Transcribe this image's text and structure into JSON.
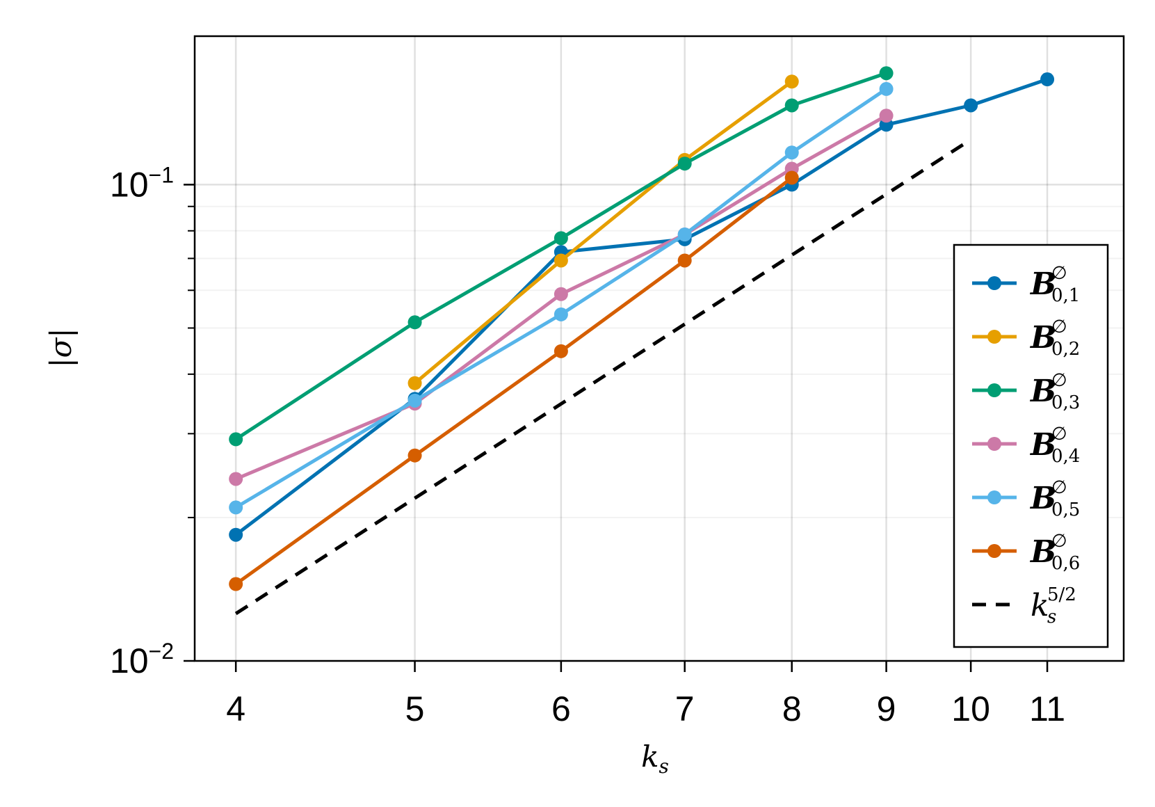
{
  "chart_data": {
    "type": "line",
    "title": "",
    "xlabel": "k",
    "xlabel_sub": "s",
    "ylabel": "|σ|",
    "x_scale": "log",
    "y_scale": "log",
    "xlim": [
      3.8,
      12.1
    ],
    "ylim": [
      0.01,
      0.205
    ],
    "x_ticks": [
      {
        "value": 4,
        "label": "4"
      },
      {
        "value": 5,
        "label": "5"
      },
      {
        "value": 6,
        "label": "6"
      },
      {
        "value": 7,
        "label": "7"
      },
      {
        "value": 8,
        "label": "8"
      },
      {
        "value": 9,
        "label": "9"
      },
      {
        "value": 10,
        "label": "10"
      },
      {
        "value": 11,
        "label": "11"
      }
    ],
    "y_ticks": [
      {
        "value": 0.01,
        "base": "10",
        "exp": "−2"
      },
      {
        "value": 0.1,
        "base": "10",
        "exp": "−1"
      }
    ],
    "y_minor_ticks": [
      0.02,
      0.03,
      0.04,
      0.05,
      0.06,
      0.07,
      0.08,
      0.09
    ],
    "grid": true,
    "legend_position": "bottom-right",
    "series": [
      {
        "name": "B",
        "sup": "∅",
        "sub": "0,1",
        "color": "#0072B2",
        "dash": false,
        "x": [
          4,
          5,
          6,
          7,
          8,
          9,
          10,
          11
        ],
        "y": [
          0.0184,
          0.0355,
          0.0722,
          0.0768,
          0.1,
          0.1336,
          0.1467,
          0.1664
        ]
      },
      {
        "name": "B",
        "sup": "∅",
        "sub": "0,2",
        "color": "#E69F00",
        "dash": false,
        "x": [
          5,
          6,
          7,
          8
        ],
        "y": [
          0.0383,
          0.0693,
          0.1127,
          0.1646
        ]
      },
      {
        "name": "B",
        "sup": "∅",
        "sub": "0,3",
        "color": "#009E73",
        "dash": false,
        "x": [
          4,
          5,
          6,
          7,
          8,
          9
        ],
        "y": [
          0.0292,
          0.0514,
          0.0772,
          0.1107,
          0.1467,
          0.1714
        ]
      },
      {
        "name": "B",
        "sup": "∅",
        "sub": "0,4",
        "color": "#CC79A7",
        "dash": false,
        "x": [
          4,
          5,
          6,
          7,
          8,
          9
        ],
        "y": [
          0.0241,
          0.0347,
          0.0589,
          0.0786,
          0.108,
          0.1396
        ]
      },
      {
        "name": "B",
        "sup": "∅",
        "sub": "0,5",
        "color": "#56B4E9",
        "dash": false,
        "x": [
          4,
          5,
          6,
          7,
          8,
          9
        ],
        "y": [
          0.021,
          0.0352,
          0.0534,
          0.0786,
          0.1168,
          0.1588
        ]
      },
      {
        "name": "B",
        "sup": "∅",
        "sub": "0,6",
        "color": "#D55E00",
        "dash": false,
        "x": [
          4,
          5,
          6,
          7,
          8
        ],
        "y": [
          0.0145,
          0.027,
          0.0447,
          0.0693,
          0.1034
        ]
      },
      {
        "name": "k",
        "sup": "5/2",
        "sub": "s",
        "color": "#000000",
        "dash": true,
        "x": [
          4,
          10
        ],
        "y": [
          0.01257,
          0.1243
        ]
      }
    ]
  }
}
